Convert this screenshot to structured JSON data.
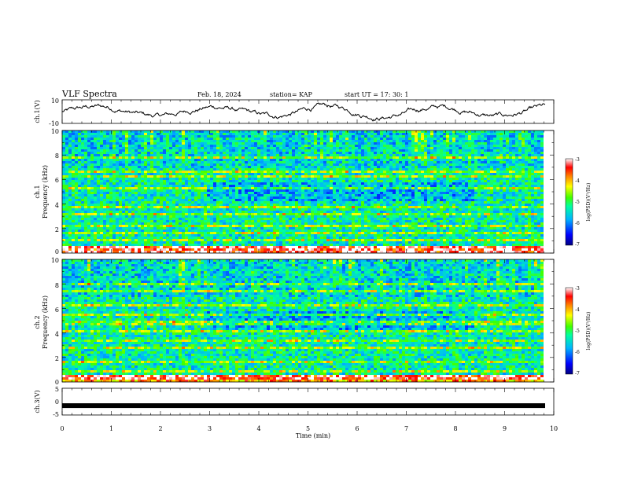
{
  "header": {
    "title": "VLF Spectra",
    "date": "Feb. 18, 2024",
    "station": "station= KAP",
    "start": "start  UT  =   17: 30: 1"
  },
  "chart_data": [
    {
      "type": "line",
      "panel": "ch1-waveform",
      "ylabel": "ch.1(V)",
      "ylim": [
        -10,
        10
      ],
      "yticks": [
        "10",
        "-10"
      ],
      "xlim": [
        0,
        10
      ],
      "series": [
        {
          "values_note": "",
          "envelope_min": -8,
          "envelope_max": 8
        }
      ]
    },
    {
      "type": "heatmap",
      "panel": "ch1-spectrogram",
      "ylabel_line1": "ch.1",
      "ylabel_line2": "Frequency (kHz)",
      "ylim": [
        0,
        10
      ],
      "yticks": [
        "0",
        "2",
        "4",
        "6",
        "8",
        "10"
      ],
      "xlim": [
        0,
        9.85
      ],
      "colorbar": {
        "label": "log(PSD)(V²/Hz)",
        "min": -7,
        "max": -3,
        "ticks": [
          "-3",
          "-4",
          "-5",
          "-6",
          "-7"
        ]
      },
      "bands_khz": [
        0.2,
        0.5,
        1.0,
        1.6,
        2.2,
        3.2,
        3.7,
        5.3,
        6.2,
        6.6,
        7.8
      ]
    },
    {
      "type": "heatmap",
      "panel": "ch2-spectrogram",
      "ylabel_line1": "ch.2",
      "ylabel_line2": "Frequency (kHz)",
      "ylim": [
        0,
        10
      ],
      "yticks": [
        "0",
        "2",
        "4",
        "6",
        "8",
        "10"
      ],
      "xlim": [
        0,
        9.85
      ],
      "colorbar": {
        "label": "log(PSD)(V²/Hz)",
        "min": -7,
        "max": -3,
        "ticks": [
          "-3",
          "-4",
          "-5",
          "-6",
          "-7"
        ]
      },
      "bands_khz": [
        0.4,
        0.8,
        1.6,
        2.8,
        3.4,
        4.2,
        4.8,
        5.5,
        6.3,
        7.4,
        8.0
      ]
    },
    {
      "type": "line",
      "panel": "ch3-waveform",
      "ylabel": "ch.3(V)",
      "ylim": [
        -5,
        5
      ],
      "yticks": [
        "5",
        "0",
        "-5"
      ],
      "xlim": [
        0,
        10
      ],
      "xticks": [
        "0",
        "1",
        "2",
        "3",
        "4",
        "5",
        "6",
        "7",
        "8",
        "9",
        "10"
      ],
      "xlabel": "Time (min)",
      "series": [
        {
          "constant_value": -1.5
        }
      ]
    }
  ]
}
